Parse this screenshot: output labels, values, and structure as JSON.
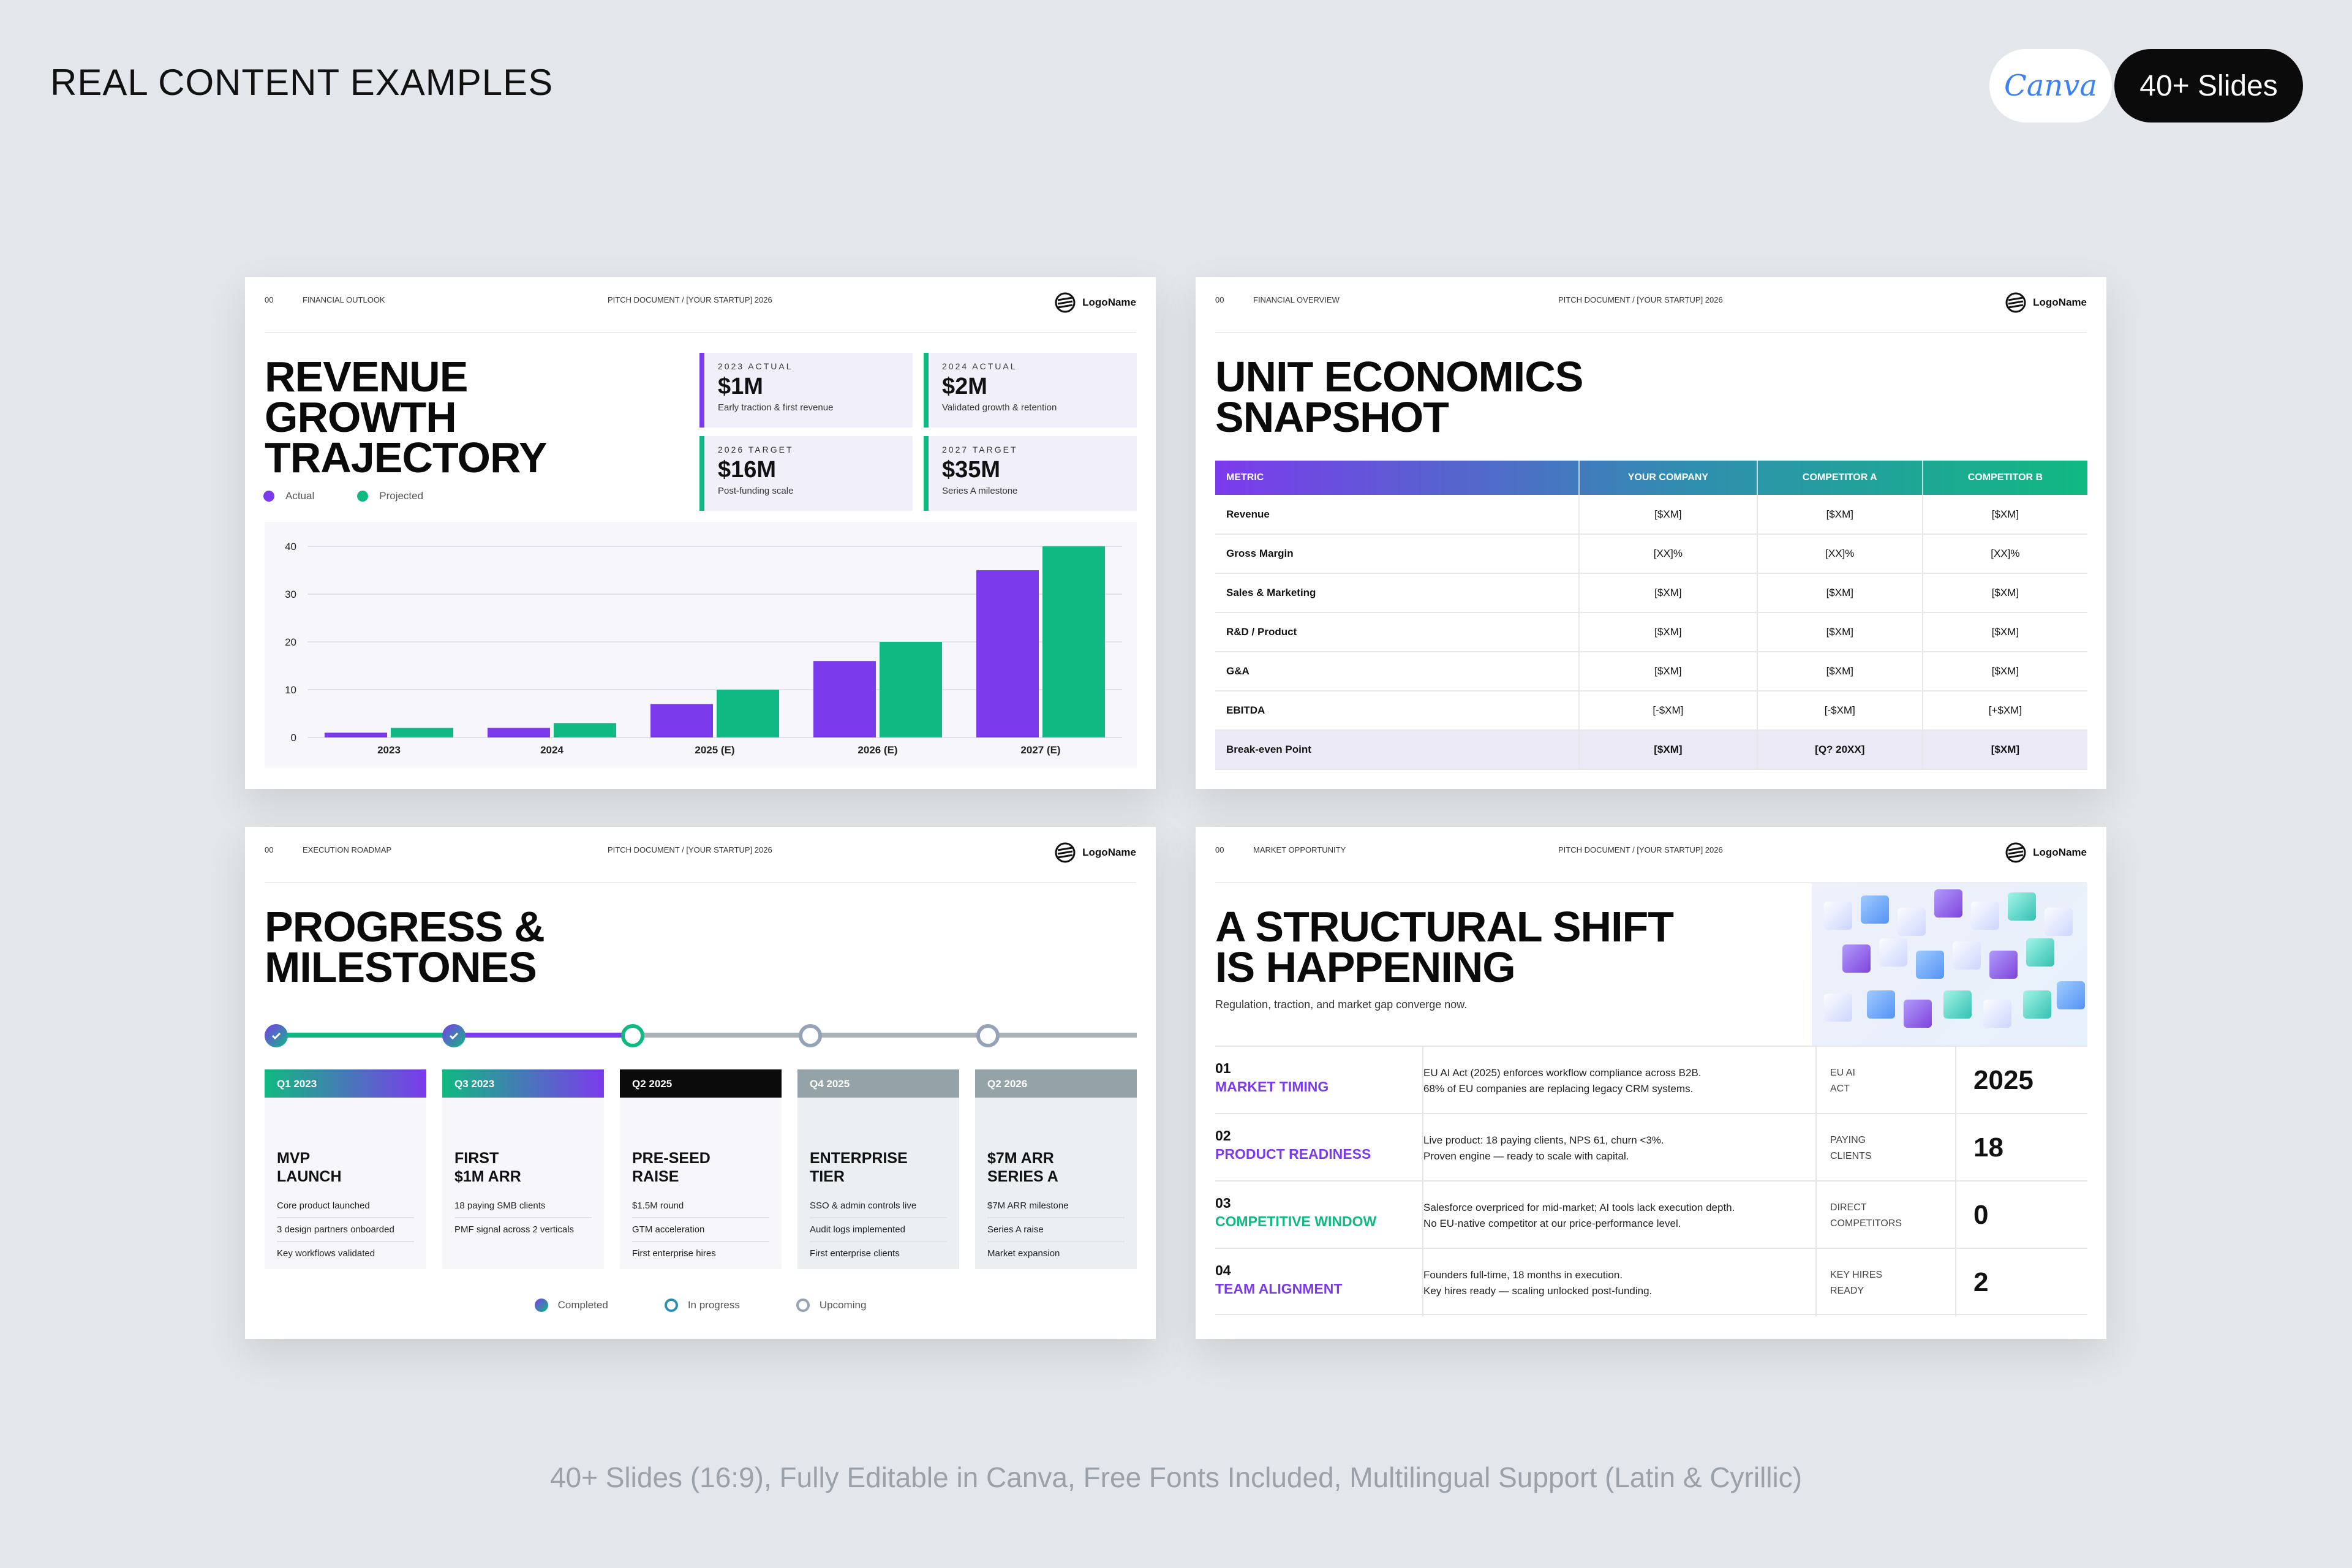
{
  "page": {
    "title": "REAL CONTENT EXAMPLES",
    "canva_label": "Canva",
    "slides_badge": "40+ Slides",
    "footer": "40+ Slides (16:9), Fully Editable in Canva, Free Fonts Included, Multilingual Support (Latin & Cyrillic)"
  },
  "colors": {
    "purple": "#7c3aed",
    "green": "#10b981",
    "gray": "#94a3b8",
    "black": "#0b0b0b"
  },
  "common": {
    "doc_label": "PITCH DOCUMENT / [YOUR STARTUP] 2026",
    "logo_name": "LogoName",
    "slide_num": "00"
  },
  "slide1": {
    "section": "FINANCIAL OUTLOOK",
    "title": "REVENUE GROWTH TRAJECTORY",
    "kpis": [
      {
        "label": "2023 ACTUAL",
        "value": "$1M",
        "sub": "Early traction & first revenue"
      },
      {
        "label": "2024 ACTUAL",
        "value": "$2M",
        "sub": "Validated growth & retention"
      },
      {
        "label": "2026 TARGET",
        "value": "$16M",
        "sub": "Post-funding scale"
      },
      {
        "label": "2027 TARGET",
        "value": "$35M",
        "sub": "Series A milestone"
      }
    ],
    "legend": {
      "actual": "Actual",
      "projected": "Projected"
    }
  },
  "chart_data": {
    "type": "bar",
    "categories": [
      "2023",
      "2024",
      "2025 (E)",
      "2026 (E)",
      "2027 (E)"
    ],
    "series": [
      {
        "name": "Actual",
        "values": [
          1,
          2,
          7,
          16,
          35
        ]
      },
      {
        "name": "Projected",
        "values": [
          2,
          3,
          10,
          20,
          40
        ]
      }
    ],
    "yticks": [
      "0",
      "10",
      "20",
      "30",
      "40"
    ],
    "ylim": [
      0,
      40
    ],
    "grid": true,
    "legend_position": "top-left"
  },
  "slide2": {
    "section": "FINANCIAL OVERVIEW",
    "title": "UNIT ECONOMICS SNAPSHOT",
    "columns": [
      "METRIC",
      "YOUR COMPANY",
      "COMPETITOR A",
      "COMPETITOR B"
    ],
    "rows": [
      [
        "Revenue",
        "[$XM]",
        "[$XM]",
        "[$XM]"
      ],
      [
        "Gross Margin",
        "[XX]%",
        "[XX]%",
        "[XX]%"
      ],
      [
        "Sales & Marketing",
        "[$XM]",
        "[$XM]",
        "[$XM]"
      ],
      [
        "R&D / Product",
        "[$XM]",
        "[$XM]",
        "[$XM]"
      ],
      [
        "G&A",
        "[$XM]",
        "[$XM]",
        "[$XM]"
      ],
      [
        "EBITDA",
        "[-$XM]",
        "[-$XM]",
        "[+$XM]"
      ],
      [
        "Break-even Point",
        "[$XM]",
        "[Q? 20XX]",
        "[$XM]"
      ]
    ]
  },
  "slide3": {
    "section": "EXECUTION ROADMAP",
    "title": "PROGRESS & MILESTONES",
    "milestones": [
      {
        "period": "Q1 2023",
        "title": "MVP LAUNCH",
        "items": [
          "Core product launched",
          "3 design partners onboarded",
          "Key workflows validated"
        ],
        "status": "completed"
      },
      {
        "period": "Q3 2023",
        "title": "FIRST $1M ARR",
        "items": [
          "18 paying SMB clients",
          "PMF signal across 2 verticals"
        ],
        "status": "completed"
      },
      {
        "period": "Q2 2025",
        "title": "PRE-SEED RAISE",
        "items": [
          "$1.5M round",
          "GTM acceleration",
          "First enterprise hires"
        ],
        "status": "in-progress"
      },
      {
        "period": "Q4 2025",
        "title": "ENTERPRISE TIER",
        "items": [
          "SSO & admin controls live",
          "Audit logs implemented",
          "First enterprise clients"
        ],
        "status": "upcoming"
      },
      {
        "period": "Q2 2026",
        "title": "$7M ARR SERIES A",
        "items": [
          "$7M ARR milestone",
          "Series A raise",
          "Market expansion"
        ],
        "status": "upcoming"
      }
    ],
    "legend": {
      "completed": "Completed",
      "in_progress": "In progress",
      "upcoming": "Upcoming"
    }
  },
  "slide4": {
    "section": "MARKET OPPORTUNITY",
    "title": "A STRUCTURAL SHIFT IS HAPPENING",
    "subtitle": "Regulation, traction, and market gap converge now.",
    "rows": [
      {
        "num": "01",
        "label": "MARKET TIMING",
        "desc1": "EU AI Act (2025) enforces workflow compliance across B2B.",
        "desc2": "68% of EU companies are replacing legacy CRM systems.",
        "key1": "EU AI",
        "key2": "ACT",
        "value": "2025"
      },
      {
        "num": "02",
        "label": "PRODUCT READINESS",
        "desc1": "Live product: 18 paying clients, NPS 61, churn <3%.",
        "desc2": "Proven engine — ready to scale with capital.",
        "key1": "PAYING",
        "key2": "CLIENTS",
        "value": "18"
      },
      {
        "num": "03",
        "label": "COMPETITIVE WINDOW",
        "desc1": "Salesforce overpriced for mid-market; AI tools lack execution depth.",
        "desc2": "No EU-native competitor at our price-performance level.",
        "key1": "DIRECT",
        "key2": "COMPETITORS",
        "value": "0"
      },
      {
        "num": "04",
        "label": "TEAM ALIGNMENT",
        "desc1": "Founders full-time, 18 months in execution.",
        "desc2": "Key hires ready — scaling unlocked post-funding.",
        "key1": "KEY HIRES",
        "key2": "READY",
        "value": "2"
      }
    ]
  }
}
